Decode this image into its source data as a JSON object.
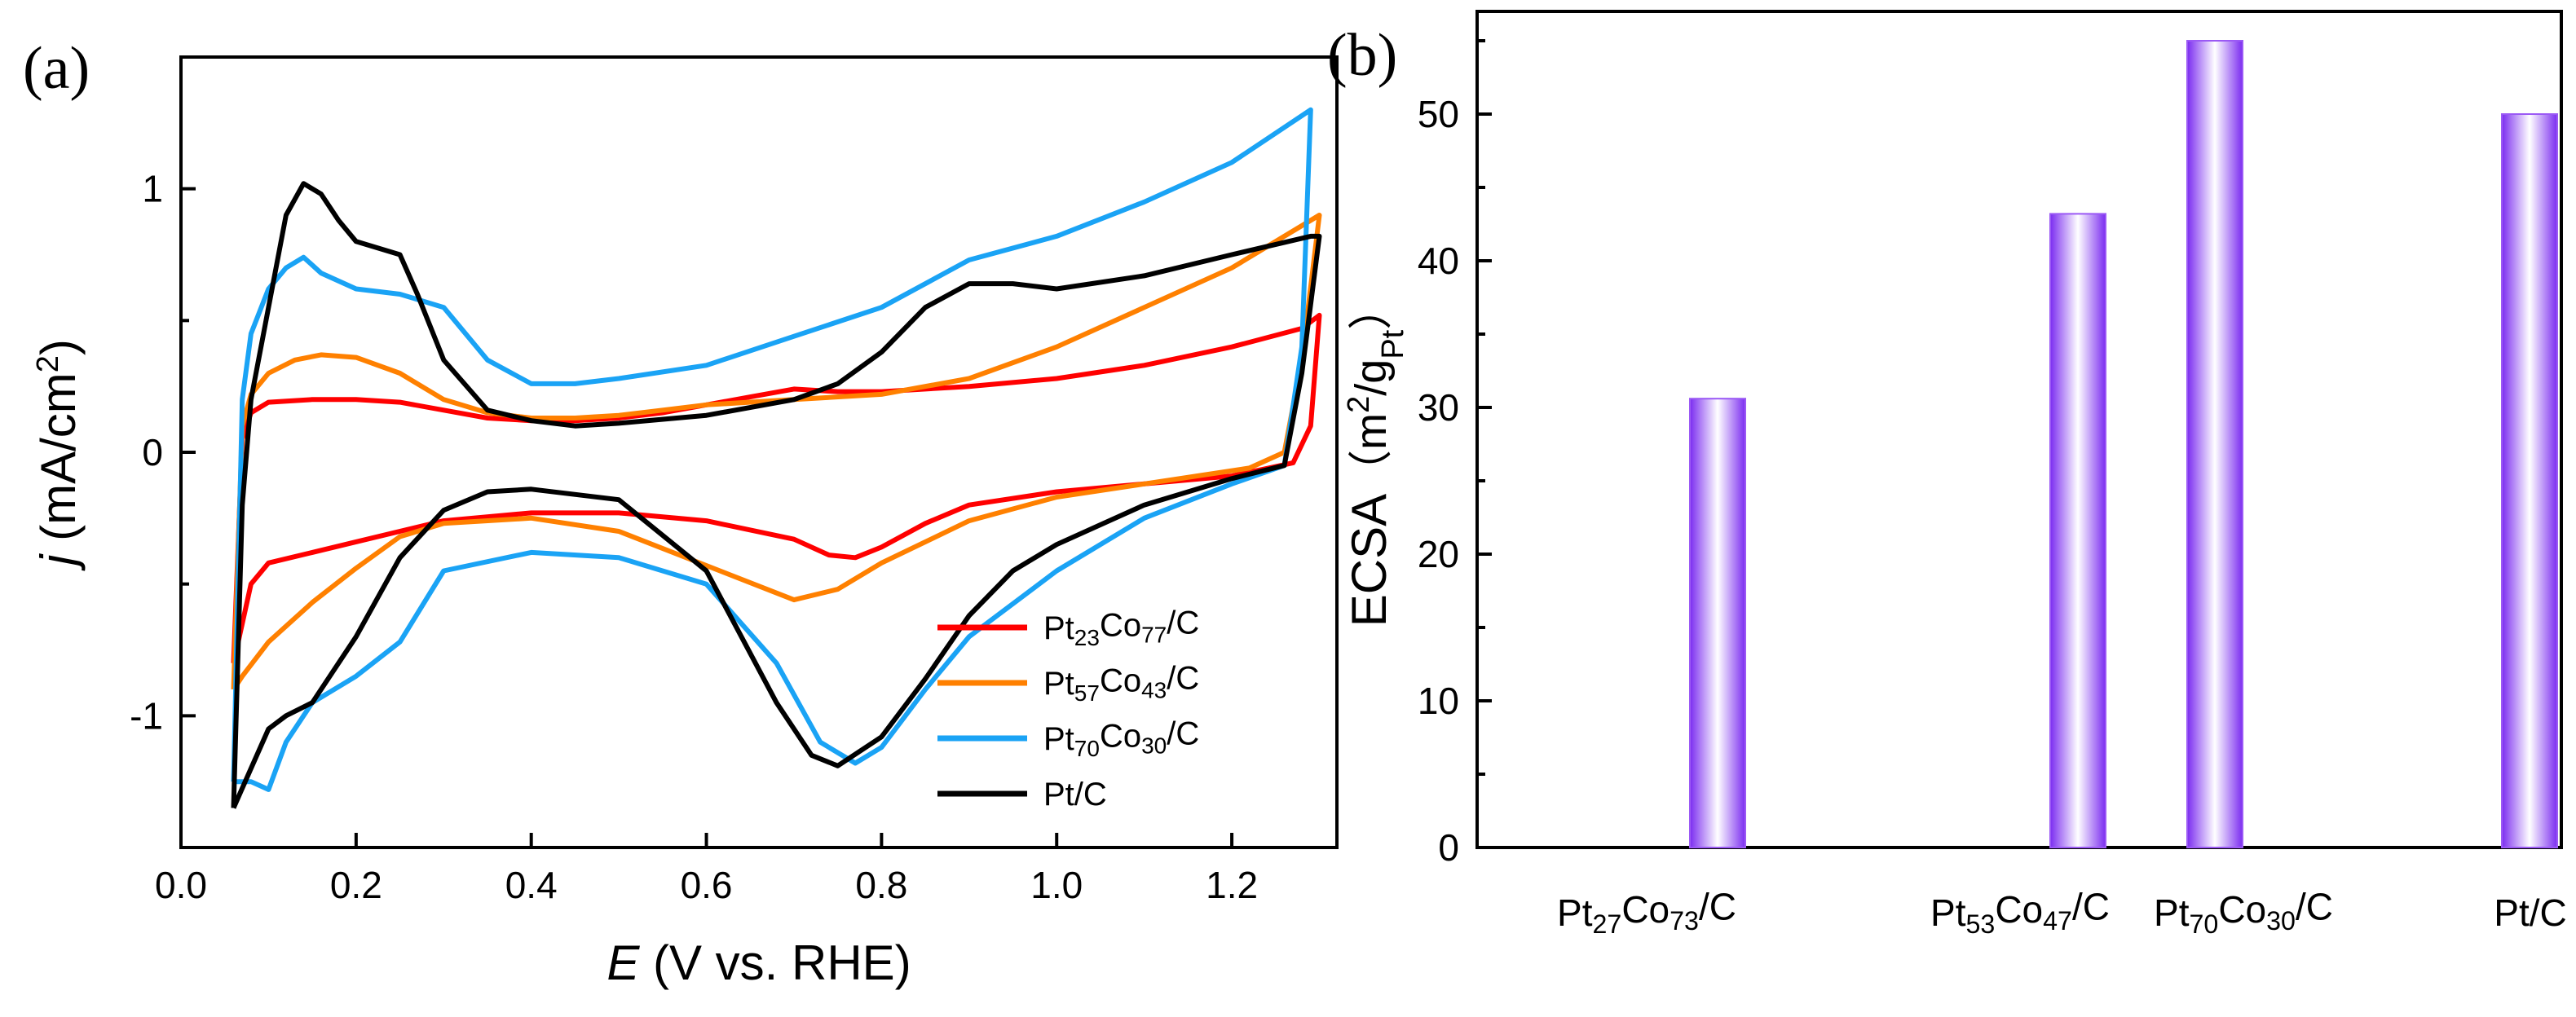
{
  "chart_data": [
    {
      "panel": "(a)",
      "type": "line",
      "xlabel": {
        "main": "E",
        "rest": " (V vs. RHE)"
      },
      "ylabel": {
        "main": "j",
        "rest": " (mA/cm",
        "sup": "2",
        "end": ")"
      },
      "xlim": [
        0.0,
        1.32
      ],
      "ylim": [
        -1.5,
        1.5
      ],
      "xticks": [
        0.0,
        0.2,
        0.4,
        0.6,
        0.8,
        1.0,
        1.2
      ],
      "xtick_labels": [
        "0.0",
        "0.2",
        "0.4",
        "0.6",
        "0.8",
        "1.0",
        "1.2"
      ],
      "yticks": [
        -1,
        0,
        1
      ],
      "ytick_labels": [
        "-1",
        "0",
        "1"
      ],
      "legend_position": "bottom-right",
      "series": [
        {
          "name": "Pt23Co77/C",
          "label": {
            "a": "Pt",
            "s1": "23",
            "b": "Co",
            "s2": "77",
            "c": "/C"
          },
          "color": "#ff0000",
          "upper": [
            [
              0.06,
              -0.8
            ],
            [
              0.07,
              0.05
            ],
            [
              0.08,
              0.15
            ],
            [
              0.1,
              0.19
            ],
            [
              0.15,
              0.2
            ],
            [
              0.2,
              0.2
            ],
            [
              0.25,
              0.19
            ],
            [
              0.3,
              0.16
            ],
            [
              0.35,
              0.13
            ],
            [
              0.4,
              0.12
            ],
            [
              0.45,
              0.12
            ],
            [
              0.5,
              0.13
            ],
            [
              0.55,
              0.15
            ],
            [
              0.6,
              0.18
            ],
            [
              0.65,
              0.21
            ],
            [
              0.7,
              0.24
            ],
            [
              0.75,
              0.23
            ],
            [
              0.8,
              0.23
            ],
            [
              0.9,
              0.25
            ],
            [
              1.0,
              0.28
            ],
            [
              1.1,
              0.33
            ],
            [
              1.2,
              0.4
            ],
            [
              1.28,
              0.47
            ],
            [
              1.3,
              0.52
            ]
          ],
          "lower": [
            [
              1.3,
              0.52
            ],
            [
              1.29,
              0.1
            ],
            [
              1.27,
              -0.04
            ],
            [
              1.2,
              -0.09
            ],
            [
              1.1,
              -0.12
            ],
            [
              1.0,
              -0.15
            ],
            [
              0.9,
              -0.2
            ],
            [
              0.85,
              -0.27
            ],
            [
              0.8,
              -0.36
            ],
            [
              0.77,
              -0.4
            ],
            [
              0.74,
              -0.39
            ],
            [
              0.7,
              -0.33
            ],
            [
              0.6,
              -0.26
            ],
            [
              0.5,
              -0.23
            ],
            [
              0.4,
              -0.23
            ],
            [
              0.3,
              -0.26
            ],
            [
              0.2,
              -0.34
            ],
            [
              0.15,
              -0.38
            ],
            [
              0.1,
              -0.42
            ],
            [
              0.08,
              -0.5
            ],
            [
              0.07,
              -0.65
            ],
            [
              0.06,
              -0.8
            ]
          ]
        },
        {
          "name": "Pt57Co43/C",
          "label": {
            "a": "Pt",
            "s1": "57",
            "b": "Co",
            "s2": "43",
            "c": "/C"
          },
          "color": "#ff8000",
          "upper": [
            [
              0.06,
              -0.9
            ],
            [
              0.07,
              0.1
            ],
            [
              0.08,
              0.22
            ],
            [
              0.1,
              0.3
            ],
            [
              0.13,
              0.35
            ],
            [
              0.16,
              0.37
            ],
            [
              0.2,
              0.36
            ],
            [
              0.25,
              0.3
            ],
            [
              0.3,
              0.2
            ],
            [
              0.35,
              0.15
            ],
            [
              0.4,
              0.13
            ],
            [
              0.45,
              0.13
            ],
            [
              0.5,
              0.14
            ],
            [
              0.55,
              0.16
            ],
            [
              0.6,
              0.18
            ],
            [
              0.7,
              0.2
            ],
            [
              0.8,
              0.22
            ],
            [
              0.9,
              0.28
            ],
            [
              1.0,
              0.4
            ],
            [
              1.1,
              0.55
            ],
            [
              1.2,
              0.7
            ],
            [
              1.3,
              0.9
            ]
          ],
          "lower": [
            [
              1.3,
              0.9
            ],
            [
              1.28,
              0.35
            ],
            [
              1.26,
              0.0
            ],
            [
              1.22,
              -0.06
            ],
            [
              1.1,
              -0.12
            ],
            [
              1.0,
              -0.17
            ],
            [
              0.9,
              -0.26
            ],
            [
              0.8,
              -0.42
            ],
            [
              0.75,
              -0.52
            ],
            [
              0.7,
              -0.56
            ],
            [
              0.6,
              -0.43
            ],
            [
              0.5,
              -0.3
            ],
            [
              0.4,
              -0.25
            ],
            [
              0.3,
              -0.27
            ],
            [
              0.25,
              -0.32
            ],
            [
              0.2,
              -0.44
            ],
            [
              0.15,
              -0.57
            ],
            [
              0.1,
              -0.72
            ],
            [
              0.07,
              -0.85
            ],
            [
              0.06,
              -0.9
            ]
          ]
        },
        {
          "name": "Pt70Co30/C",
          "label": {
            "a": "Pt",
            "s1": "70",
            "b": "Co",
            "s2": "30",
            "c": "/C"
          },
          "color": "#1aa3f5",
          "upper": [
            [
              0.06,
              -1.25
            ],
            [
              0.07,
              0.2
            ],
            [
              0.08,
              0.45
            ],
            [
              0.1,
              0.62
            ],
            [
              0.12,
              0.7
            ],
            [
              0.14,
              0.74
            ],
            [
              0.16,
              0.68
            ],
            [
              0.2,
              0.62
            ],
            [
              0.25,
              0.6
            ],
            [
              0.3,
              0.55
            ],
            [
              0.35,
              0.35
            ],
            [
              0.4,
              0.26
            ],
            [
              0.45,
              0.26
            ],
            [
              0.5,
              0.28
            ],
            [
              0.6,
              0.33
            ],
            [
              0.7,
              0.44
            ],
            [
              0.8,
              0.55
            ],
            [
              0.9,
              0.73
            ],
            [
              1.0,
              0.82
            ],
            [
              1.1,
              0.95
            ],
            [
              1.2,
              1.1
            ],
            [
              1.29,
              1.3
            ]
          ],
          "lower": [
            [
              1.29,
              1.3
            ],
            [
              1.28,
              0.4
            ],
            [
              1.26,
              -0.05
            ],
            [
              1.2,
              -0.12
            ],
            [
              1.1,
              -0.25
            ],
            [
              1.0,
              -0.45
            ],
            [
              0.9,
              -0.7
            ],
            [
              0.85,
              -0.9
            ],
            [
              0.8,
              -1.12
            ],
            [
              0.77,
              -1.18
            ],
            [
              0.73,
              -1.1
            ],
            [
              0.68,
              -0.8
            ],
            [
              0.6,
              -0.5
            ],
            [
              0.5,
              -0.4
            ],
            [
              0.4,
              -0.38
            ],
            [
              0.3,
              -0.45
            ],
            [
              0.25,
              -0.72
            ],
            [
              0.2,
              -0.85
            ],
            [
              0.15,
              -0.95
            ],
            [
              0.12,
              -1.1
            ],
            [
              0.1,
              -1.28
            ],
            [
              0.08,
              -1.25
            ],
            [
              0.06,
              -1.25
            ]
          ]
        },
        {
          "name": "Pt/C",
          "label": {
            "a": "Pt/C",
            "s1": "",
            "b": "",
            "s2": "",
            "c": ""
          },
          "color": "#000000",
          "upper": [
            [
              0.06,
              -1.35
            ],
            [
              0.07,
              -0.2
            ],
            [
              0.08,
              0.2
            ],
            [
              0.1,
              0.55
            ],
            [
              0.12,
              0.9
            ],
            [
              0.14,
              1.02
            ],
            [
              0.16,
              0.98
            ],
            [
              0.18,
              0.88
            ],
            [
              0.2,
              0.8
            ],
            [
              0.25,
              0.75
            ],
            [
              0.27,
              0.6
            ],
            [
              0.3,
              0.35
            ],
            [
              0.35,
              0.16
            ],
            [
              0.4,
              0.12
            ],
            [
              0.45,
              0.1
            ],
            [
              0.5,
              0.11
            ],
            [
              0.6,
              0.14
            ],
            [
              0.7,
              0.2
            ],
            [
              0.75,
              0.26
            ],
            [
              0.8,
              0.38
            ],
            [
              0.85,
              0.55
            ],
            [
              0.9,
              0.64
            ],
            [
              0.95,
              0.64
            ],
            [
              1.0,
              0.62
            ],
            [
              1.1,
              0.67
            ],
            [
              1.2,
              0.75
            ],
            [
              1.29,
              0.82
            ],
            [
              1.3,
              0.82
            ]
          ],
          "lower": [
            [
              1.3,
              0.82
            ],
            [
              1.28,
              0.3
            ],
            [
              1.26,
              -0.05
            ],
            [
              1.2,
              -0.1
            ],
            [
              1.1,
              -0.2
            ],
            [
              1.0,
              -0.35
            ],
            [
              0.95,
              -0.45
            ],
            [
              0.9,
              -0.62
            ],
            [
              0.85,
              -0.86
            ],
            [
              0.8,
              -1.08
            ],
            [
              0.75,
              -1.19
            ],
            [
              0.72,
              -1.15
            ],
            [
              0.68,
              -0.95
            ],
            [
              0.6,
              -0.45
            ],
            [
              0.5,
              -0.18
            ],
            [
              0.4,
              -0.14
            ],
            [
              0.35,
              -0.15
            ],
            [
              0.3,
              -0.22
            ],
            [
              0.25,
              -0.4
            ],
            [
              0.2,
              -0.7
            ],
            [
              0.15,
              -0.95
            ],
            [
              0.12,
              -1.0
            ],
            [
              0.1,
              -1.05
            ],
            [
              0.08,
              -1.2
            ],
            [
              0.06,
              -1.35
            ]
          ]
        }
      ]
    },
    {
      "panel": "(b)",
      "type": "bar",
      "ylabel": {
        "main": "ECSA",
        "paren_open": "（m",
        "sup": "2",
        "mid": "/g",
        "sub": "Pt",
        "paren_close": "）"
      },
      "ylim": [
        0,
        57
      ],
      "yticks": [
        0,
        10,
        20,
        30,
        40,
        50
      ],
      "ytick_labels": [
        "0",
        "10",
        "20",
        "30",
        "40",
        "50"
      ],
      "bar_color": "#9b59f5",
      "categories": [
        {
          "name": "Pt27Co73/C",
          "a": "Pt",
          "s1": "27",
          "b": "Co",
          "s2": "73",
          "c": "/C"
        },
        {
          "name": "Pt53Co47/C",
          "a": "Pt",
          "s1": "53",
          "b": "Co",
          "s2": "47",
          "c": "/C"
        },
        {
          "name": "Pt70Co30/C",
          "a": "Pt",
          "s1": "70",
          "b": "Co",
          "s2": "30",
          "c": "/C"
        },
        {
          "name": "Pt/C",
          "a": "Pt/C",
          "s1": "",
          "b": "",
          "s2": "",
          "c": ""
        }
      ],
      "values": [
        30.6,
        43.2,
        55.0,
        50.0
      ]
    }
  ]
}
